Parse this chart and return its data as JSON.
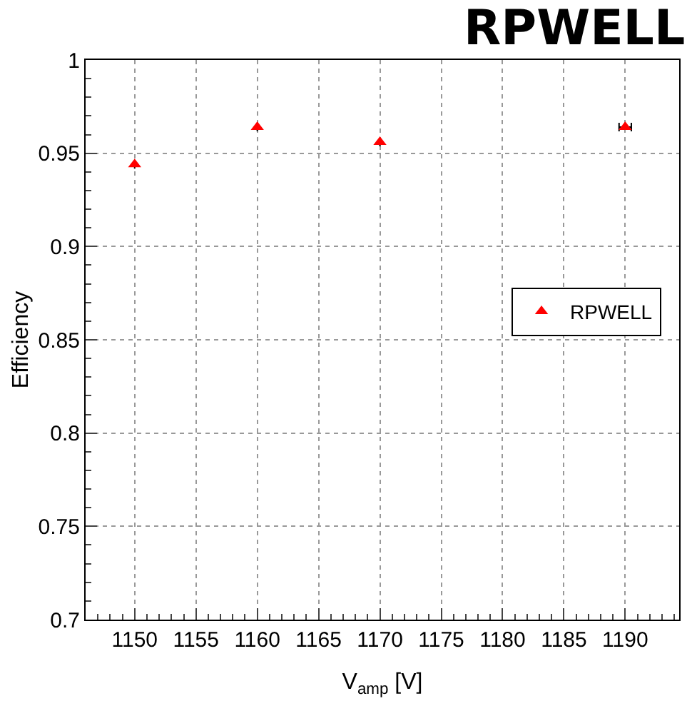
{
  "chart_data": {
    "type": "scatter",
    "title": "RPWELL",
    "xlabel": "V$_{amp}$ [V]",
    "ylabel": "Efficiency",
    "x": [
      1150,
      1160,
      1170,
      1190
    ],
    "series": [
      {
        "name": "RPWELL",
        "color": "#ff0000",
        "values": [
          0.944,
          0.964,
          0.956,
          0.964
        ],
        "xerrors": [
          null,
          null,
          null,
          0.5
        ]
      }
    ],
    "xlim": [
      1146,
      1194.4
    ],
    "ylim": [
      0.7,
      1
    ],
    "xticks": [
      1150,
      1155,
      1160,
      1165,
      1170,
      1175,
      1180,
      1185,
      1190
    ],
    "yticks": [
      0.7,
      0.75,
      0.8,
      0.85,
      0.9,
      0.95,
      1
    ],
    "grid": true,
    "legend": "right",
    "marker": "triangle"
  }
}
